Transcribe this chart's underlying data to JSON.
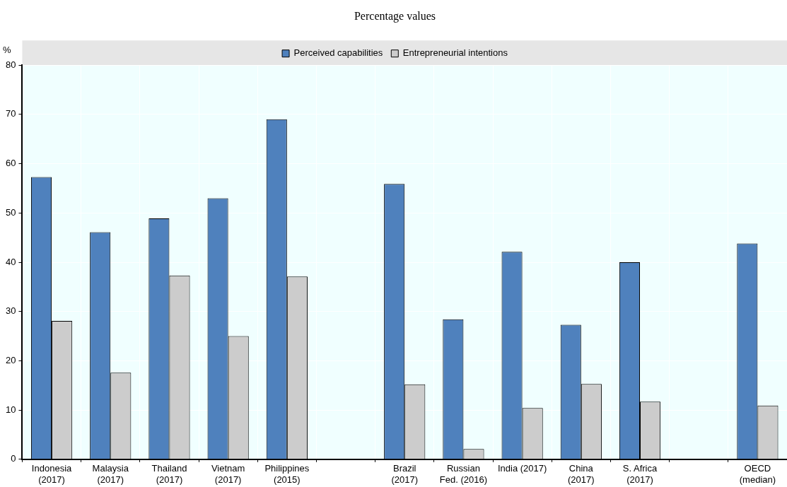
{
  "chart_data": {
    "type": "bar",
    "title": "Percentage values",
    "ylabel": "%",
    "categories": [
      "Indonesia\n(2017)",
      "Malaysia\n(2017)",
      "Thailand\n(2017)",
      "Vietnam\n(2017)",
      "Philippines\n(2015)",
      null,
      "Brazil\n(2017)",
      "Russian\nFed. (2016)",
      "India (2017)",
      "China\n(2017)",
      "S. Africa\n(2017)",
      null,
      "OECD\n(median)"
    ],
    "series": [
      {
        "name": "Perceived capabilities",
        "color": "#4f81bd",
        "values": [
          57.3,
          46.1,
          48.9,
          53.0,
          69.0,
          null,
          55.9,
          28.4,
          42.1,
          27.3,
          40.0,
          null,
          43.8
        ]
      },
      {
        "name": "Entrepreneurial intentions",
        "color": "#cccccc",
        "values": [
          28.1,
          17.6,
          37.3,
          25.0,
          37.1,
          null,
          15.2,
          2.1,
          10.4,
          15.3,
          11.7,
          null,
          10.9
        ]
      }
    ],
    "ylim": [
      0,
      80
    ],
    "yticks": [
      0,
      10,
      20,
      30,
      40,
      50,
      60,
      70,
      80
    ],
    "grid": true,
    "legend": "top"
  }
}
